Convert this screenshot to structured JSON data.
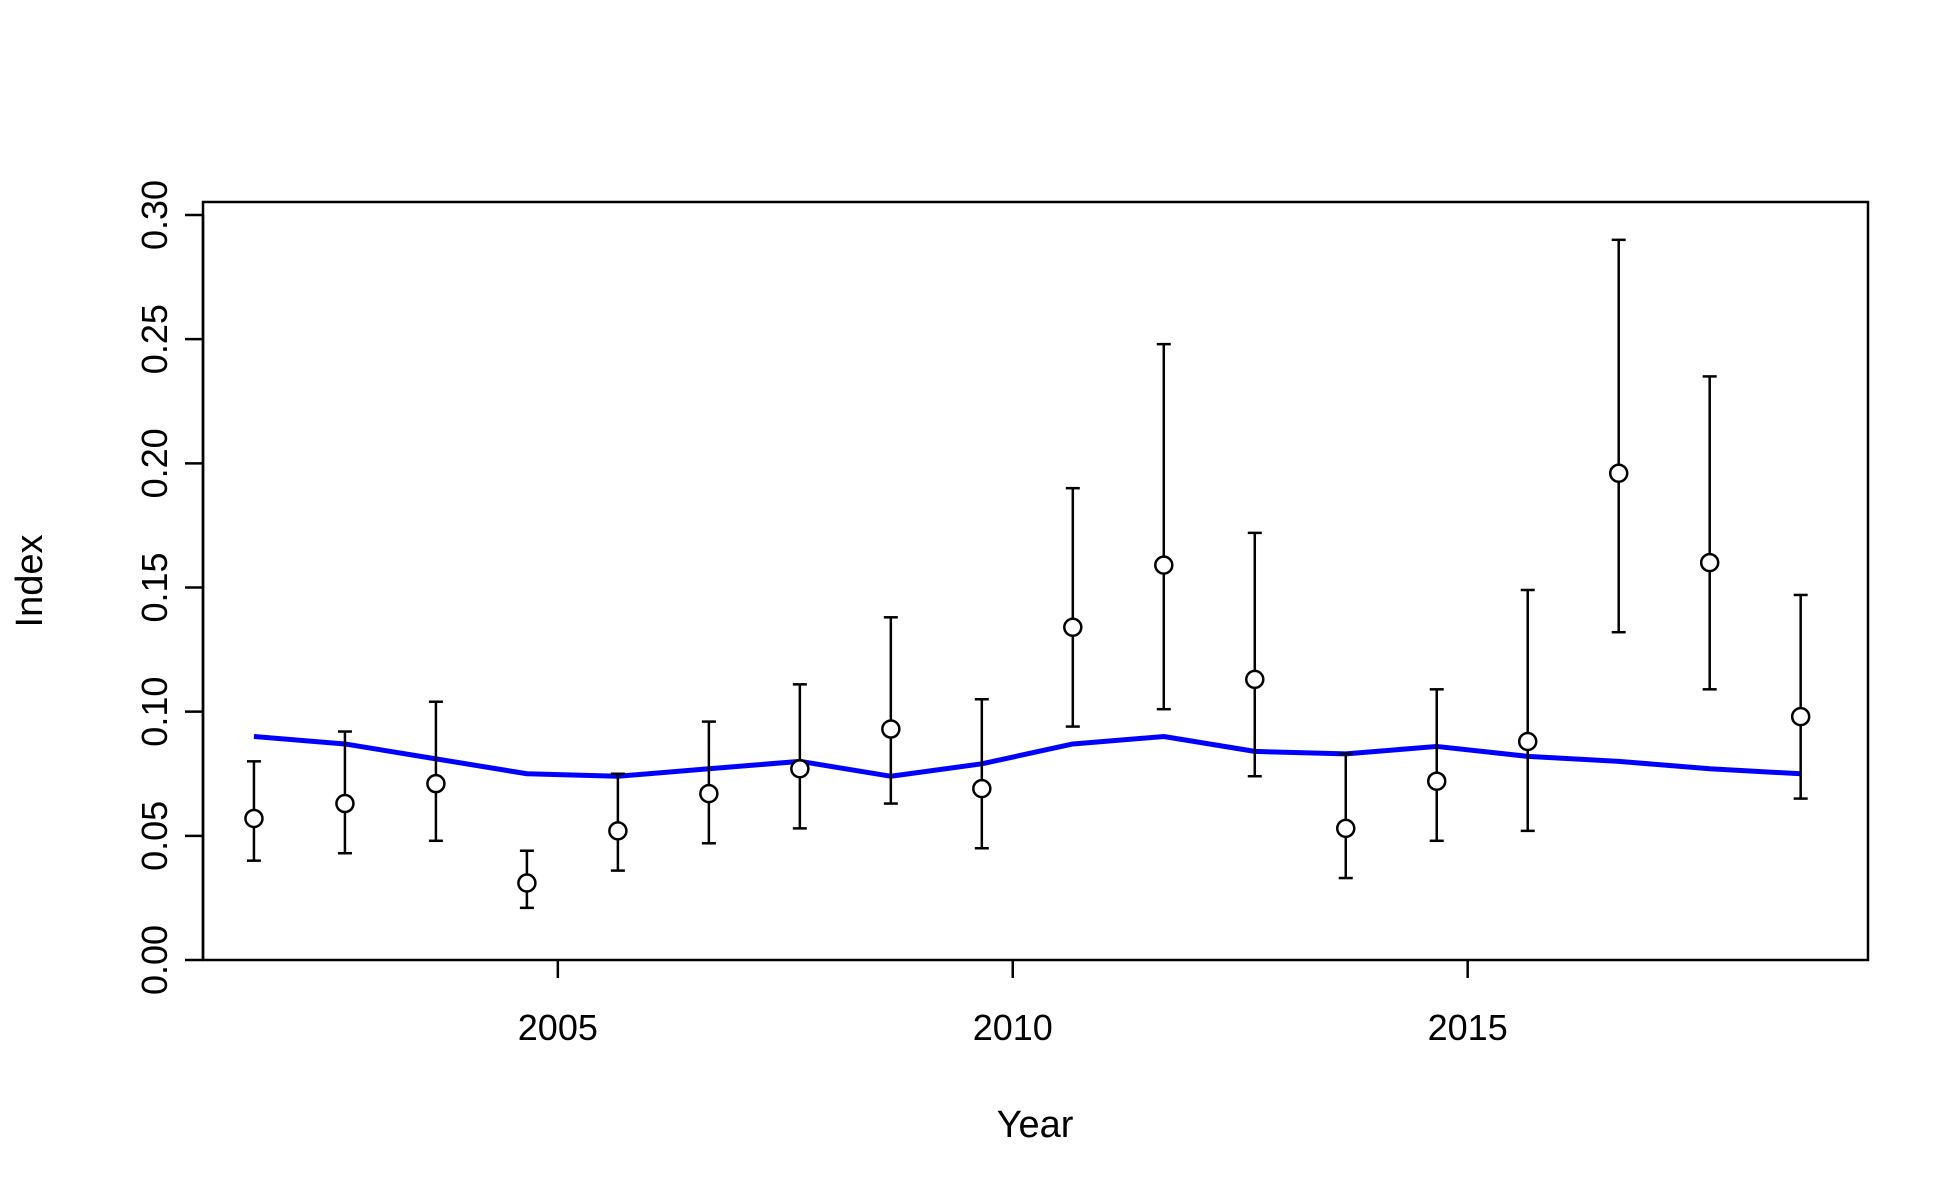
{
  "chart_data": {
    "type": "scatter",
    "title": "",
    "xlabel": "Year",
    "ylabel": "Index",
    "xlim": [
      2001.1,
      2019.4
    ],
    "ylim": [
      0,
      0.3
    ],
    "x_ticks": [
      2005,
      2010,
      2015
    ],
    "x_tick_labels": [
      "2005",
      "2010",
      "2015"
    ],
    "y_ticks": [
      0,
      0.05,
      0.1,
      0.15,
      0.2,
      0.25,
      0.3
    ],
    "y_tick_labels": [
      "0.00",
      "0.05",
      "0.10",
      "0.15",
      "0.20",
      "0.25",
      "0.30"
    ],
    "grid": false,
    "legend": "none",
    "colors": {
      "observed": "#000000",
      "fit_line": "#0000ff"
    },
    "series": [
      {
        "type": "points_with_error_bars",
        "x": [
          2001.66,
          2002.66,
          2003.66,
          2004.66,
          2005.66,
          2006.66,
          2007.66,
          2008.66,
          2009.66,
          2010.66,
          2011.66,
          2012.66,
          2013.66,
          2014.66,
          2015.66,
          2016.66,
          2017.66,
          2018.66
        ],
        "y": [
          0.057,
          0.063,
          0.071,
          0.031,
          0.052,
          0.067,
          0.077,
          0.093,
          0.069,
          0.134,
          0.159,
          0.113,
          0.053,
          0.072,
          0.088,
          0.196,
          0.16,
          0.098
        ],
        "lower": [
          0.04,
          0.043,
          0.048,
          0.021,
          0.036,
          0.047,
          0.053,
          0.063,
          0.045,
          0.094,
          0.101,
          0.074,
          0.033,
          0.048,
          0.052,
          0.132,
          0.109,
          0.065
        ],
        "upper": [
          0.08,
          0.092,
          0.104,
          0.044,
          0.075,
          0.096,
          0.111,
          0.138,
          0.105,
          0.19,
          0.248,
          0.172,
          0.083,
          0.109,
          0.149,
          0.29,
          0.235,
          0.147
        ]
      },
      {
        "type": "line",
        "x": [
          2001.66,
          2002.66,
          2003.66,
          2004.66,
          2005.66,
          2006.66,
          2007.66,
          2008.66,
          2009.66,
          2010.66,
          2011.66,
          2012.66,
          2013.66,
          2014.66,
          2015.66,
          2016.66,
          2017.66,
          2018.66
        ],
        "y": [
          0.09,
          0.087,
          0.081,
          0.075,
          0.074,
          0.077,
          0.08,
          0.074,
          0.079,
          0.087,
          0.09,
          0.084,
          0.083,
          0.086,
          0.082,
          0.08,
          0.077,
          0.075
        ]
      }
    ]
  }
}
